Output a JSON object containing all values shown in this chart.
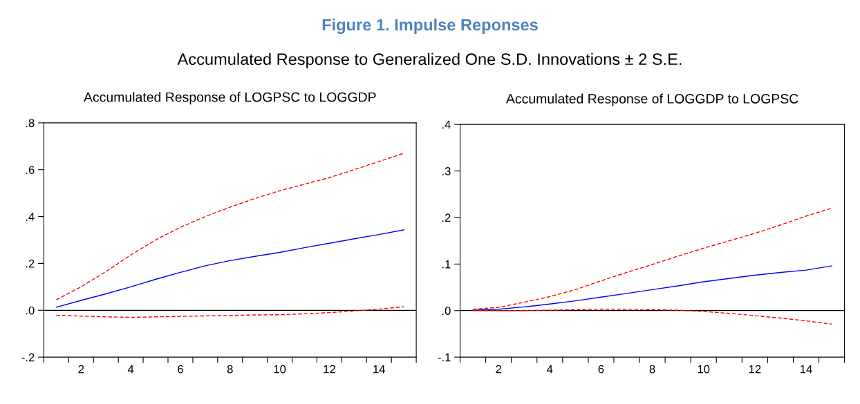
{
  "chart_data": [
    {
      "type": "line",
      "title": "Accumulated Response of LOGPSC to LOGGDP",
      "annotations": [
        "Figure 1. Impulse Reponses",
        "Accumulated Response to Generalized One S.D. Innovations ± 2 S.E."
      ],
      "x": [
        1,
        2,
        3,
        4,
        5,
        6,
        7,
        8,
        9,
        10,
        11,
        12,
        13,
        14,
        15
      ],
      "series": [
        {
          "color": "#0000ff",
          "line_style": "solid",
          "values": [
            0.013,
            0.042,
            0.07,
            0.1,
            0.132,
            0.162,
            0.19,
            0.212,
            0.23,
            0.247,
            0.267,
            0.286,
            0.305,
            0.323,
            0.343
          ]
        },
        {
          "color": "#ff0000",
          "line_style": "dashed",
          "values": [
            0.045,
            0.1,
            0.165,
            0.236,
            0.3,
            0.354,
            0.4,
            0.44,
            0.477,
            0.51,
            0.538,
            0.566,
            0.6,
            0.635,
            0.67
          ]
        },
        {
          "color": "#ff0000",
          "line_style": "dashed",
          "values": [
            -0.021,
            -0.025,
            -0.028,
            -0.03,
            -0.028,
            -0.026,
            -0.024,
            -0.022,
            -0.02,
            -0.019,
            -0.015,
            -0.01,
            -0.003,
            0.005,
            0.015
          ]
        }
      ],
      "xlim": [
        0.5,
        15.5
      ],
      "xticks": [
        {
          "value": 0.5,
          "label": null
        },
        {
          "value": 1.5,
          "label": null
        },
        {
          "value": 2,
          "label": "2"
        },
        {
          "value": 2.5,
          "label": null
        },
        {
          "value": 3.5,
          "label": null
        },
        {
          "value": 4,
          "label": "4"
        },
        {
          "value": 4.5,
          "label": null
        },
        {
          "value": 5.5,
          "label": null
        },
        {
          "value": 6,
          "label": "6"
        },
        {
          "value": 6.5,
          "label": null
        },
        {
          "value": 7.5,
          "label": null
        },
        {
          "value": 8,
          "label": "8"
        },
        {
          "value": 8.5,
          "label": null
        },
        {
          "value": 9.5,
          "label": null
        },
        {
          "value": 10,
          "label": "10"
        },
        {
          "value": 10.5,
          "label": null
        },
        {
          "value": 11.5,
          "label": null
        },
        {
          "value": 12,
          "label": "12"
        },
        {
          "value": 12.5,
          "label": null
        },
        {
          "value": 13.5,
          "label": null
        },
        {
          "value": 14,
          "label": "14"
        },
        {
          "value": 14.5,
          "label": null
        },
        {
          "value": 15.5,
          "label": null
        }
      ],
      "ylim": [
        -0.2,
        0.8
      ],
      "yticks": [
        {
          "value": -0.2,
          "label": "-.2"
        },
        {
          "value": 0,
          "label": ".0"
        },
        {
          "value": 0.2,
          "label": ".2"
        },
        {
          "value": 0.4,
          "label": ".4"
        },
        {
          "value": 0.6,
          "label": ".6"
        },
        {
          "value": 0.8,
          "label": ".8"
        }
      ],
      "ref_lines": [
        {
          "axis": "y",
          "value": 0,
          "color": "#000000"
        }
      ],
      "grid": false,
      "legend": false
    },
    {
      "type": "line",
      "title": "Accumulated Response of LOGGDP to LOGPSC",
      "x": [
        1,
        2,
        3,
        4,
        5,
        6,
        7,
        8,
        9,
        10,
        11,
        12,
        13,
        14,
        15
      ],
      "series": [
        {
          "color": "#0000ff",
          "line_style": "solid",
          "values": [
            0.001,
            0.003,
            0.008,
            0.014,
            0.021,
            0.029,
            0.037,
            0.045,
            0.053,
            0.062,
            0.069,
            0.076,
            0.082,
            0.087,
            0.096
          ]
        },
        {
          "color": "#ff0000",
          "line_style": "dashed",
          "values": [
            0.003,
            0.007,
            0.018,
            0.03,
            0.045,
            0.064,
            0.082,
            0.099,
            0.117,
            0.134,
            0.15,
            0.166,
            0.184,
            0.203,
            0.22
          ]
        },
        {
          "color": "#ff0000",
          "line_style": "dashed",
          "values": [
            0.0,
            0.0,
            0.0,
            0.001,
            0.002,
            0.003,
            0.003,
            0.002,
            0.001,
            -0.002,
            -0.006,
            -0.011,
            -0.016,
            -0.022,
            -0.029
          ]
        }
      ],
      "xlim": [
        0.5,
        15.5
      ],
      "xticks": [
        {
          "value": 0.5,
          "label": null
        },
        {
          "value": 1.5,
          "label": null
        },
        {
          "value": 2,
          "label": "2"
        },
        {
          "value": 2.5,
          "label": null
        },
        {
          "value": 3.5,
          "label": null
        },
        {
          "value": 4,
          "label": "4"
        },
        {
          "value": 4.5,
          "label": null
        },
        {
          "value": 5.5,
          "label": null
        },
        {
          "value": 6,
          "label": "6"
        },
        {
          "value": 6.5,
          "label": null
        },
        {
          "value": 7.5,
          "label": null
        },
        {
          "value": 8,
          "label": "8"
        },
        {
          "value": 8.5,
          "label": null
        },
        {
          "value": 9.5,
          "label": null
        },
        {
          "value": 10,
          "label": "10"
        },
        {
          "value": 10.5,
          "label": null
        },
        {
          "value": 11.5,
          "label": null
        },
        {
          "value": 12,
          "label": "12"
        },
        {
          "value": 12.5,
          "label": null
        },
        {
          "value": 13.5,
          "label": null
        },
        {
          "value": 14,
          "label": "14"
        },
        {
          "value": 14.5,
          "label": null
        },
        {
          "value": 15.5,
          "label": null
        }
      ],
      "ylim": [
        -0.1,
        0.4
      ],
      "yticks": [
        {
          "value": -0.1,
          "label": "-.1"
        },
        {
          "value": 0,
          "label": ".0"
        },
        {
          "value": 0.1,
          "label": ".1"
        },
        {
          "value": 0.2,
          "label": ".2"
        },
        {
          "value": 0.3,
          "label": ".3"
        },
        {
          "value": 0.4,
          "label": ".4"
        }
      ],
      "ref_lines": [
        {
          "axis": "y",
          "value": 0,
          "color": "#000000"
        }
      ],
      "grid": false,
      "legend": false
    }
  ]
}
